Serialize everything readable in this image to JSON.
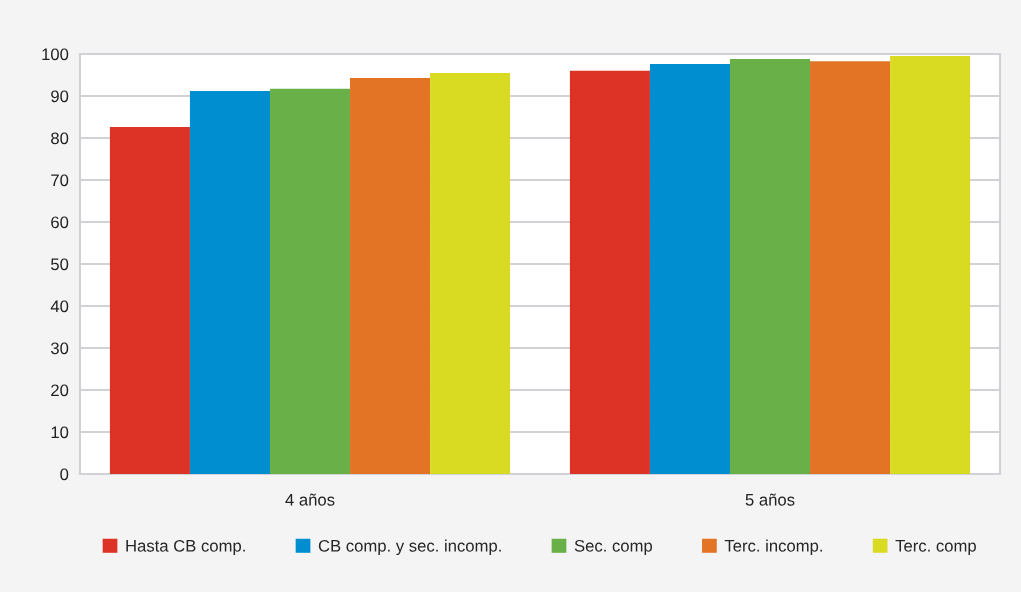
{
  "chart_data": {
    "type": "bar",
    "categories": [
      "4 años",
      "5 años"
    ],
    "series": [
      {
        "name": "Hasta CB comp.",
        "color": "#dc3326",
        "values": [
          82.6,
          96.0
        ]
      },
      {
        "name": "CB comp. y sec. incomp.",
        "color": "#008ed0",
        "values": [
          91.2,
          97.6
        ]
      },
      {
        "name": "Sec. comp",
        "color": "#68b047",
        "values": [
          91.7,
          98.8
        ]
      },
      {
        "name": "Terc. incomp.",
        "color": "#e37425",
        "values": [
          94.3,
          98.3
        ]
      },
      {
        "name": "Terc. comp",
        "color": "#d9db22",
        "values": [
          95.5,
          99.5
        ]
      }
    ],
    "ylim": [
      0,
      100
    ],
    "yticks": [
      0,
      10,
      20,
      30,
      40,
      50,
      60,
      70,
      80,
      90,
      100
    ],
    "grid": "y",
    "legend": "bottom"
  }
}
